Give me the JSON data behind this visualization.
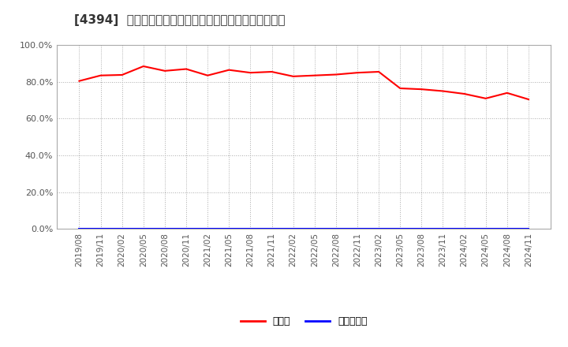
{
  "title": "[4394]  現預金、有利子負債の総資産に対する比率の推移",
  "x_labels": [
    "2019/08",
    "2019/11",
    "2020/02",
    "2020/05",
    "2020/08",
    "2020/11",
    "2021/02",
    "2021/05",
    "2021/08",
    "2021/11",
    "2022/02",
    "2022/05",
    "2022/08",
    "2022/11",
    "2023/02",
    "2023/05",
    "2023/08",
    "2023/11",
    "2024/02",
    "2024/05",
    "2024/08",
    "2024/11"
  ],
  "cash_ratio": [
    80.5,
    83.5,
    83.8,
    88.5,
    86.0,
    87.0,
    83.5,
    86.5,
    85.0,
    85.5,
    83.0,
    83.5,
    84.0,
    85.0,
    85.5,
    76.5,
    76.0,
    75.0,
    73.5,
    71.0,
    74.0,
    70.5
  ],
  "debt_ratio": [
    0.0,
    0.0,
    0.0,
    0.0,
    0.0,
    0.0,
    0.0,
    0.0,
    0.0,
    0.0,
    0.0,
    0.0,
    0.0,
    0.0,
    0.0,
    0.0,
    0.0,
    0.0,
    0.0,
    0.0,
    0.0,
    0.0
  ],
  "cash_color": "#ff0000",
  "debt_color": "#0000ff",
  "bg_color": "#ffffff",
  "plot_bg_color": "#ffffff",
  "grid_color": "#aaaaaa",
  "legend_cash": "現預金",
  "legend_debt": "有利子負債",
  "ylim": [
    0,
    100
  ],
  "yticks": [
    0,
    20,
    40,
    60,
    80,
    100
  ],
  "ytick_labels": [
    "0.0%",
    "20.0%",
    "40.0%",
    "60.0%",
    "80.0%",
    "100.0%"
  ]
}
